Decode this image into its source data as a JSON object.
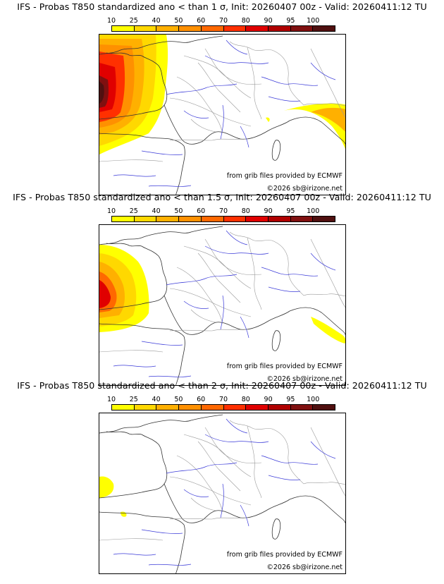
{
  "colorbar": {
    "ticks": [
      "10",
      "25",
      "40",
      "50",
      "60",
      "70",
      "80",
      "90",
      "95",
      "100"
    ],
    "colors": [
      "#ffff00",
      "#ffd800",
      "#ffb000",
      "#ff9000",
      "#ff6800",
      "#ff3000",
      "#e00000",
      "#b00000",
      "#801010",
      "#501010"
    ]
  },
  "palette": {
    "sea_line": "#000000",
    "river": "#3a3ad8",
    "border": "#9a9a9a",
    "coast": "#333333"
  },
  "panels": [
    {
      "title": "IFS - Probas T850  standardized ano < than 1 σ, Init: 20260407 00z - Valid: 20260411:12 TU",
      "credit_source": "from grib files provided by ECMWF",
      "credit_copy": "©2026 sb@irizone.net",
      "intensity": "high"
    },
    {
      "title": "IFS - Probas T850  standardized ano < than 1.5 σ, Init: 20260407 00z - Valid: 20260411:12 TU",
      "credit_source": "from grib files provided by ECMWF",
      "credit_copy": "©2026 sb@irizone.net",
      "intensity": "medium"
    },
    {
      "title": "IFS - Probas T850  standardized ano < than 2 σ, Init: 20260407 00z - Valid: 20260411:12 TU",
      "credit_source": "from grib files provided by ECMWF",
      "credit_copy": "©2026 sb@irizone.net",
      "intensity": "low"
    }
  ]
}
